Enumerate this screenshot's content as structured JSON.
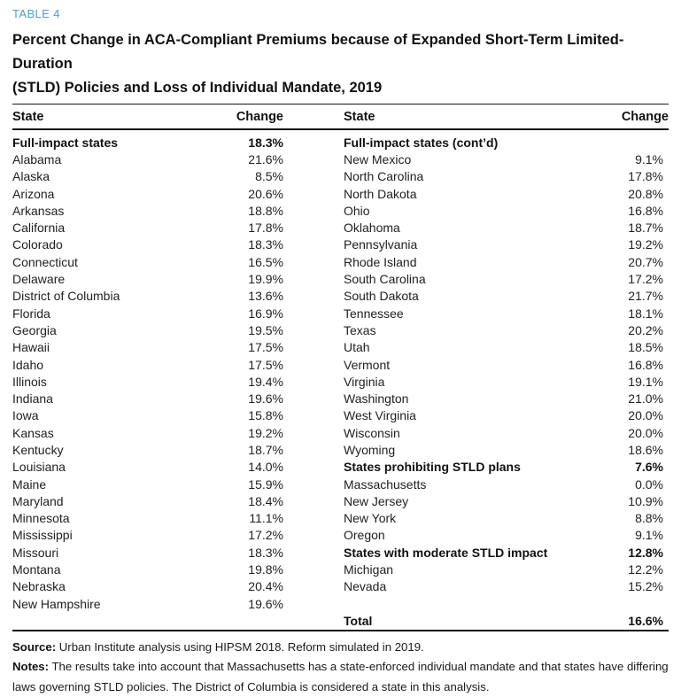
{
  "table_label": "TABLE 4",
  "title_line1": "Percent Change in ACA-Compliant Premiums because of Expanded Short-Term Limited-Duration",
  "title_line2": "(STLD) Policies and Loss of Individual Mandate, 2019",
  "columns": {
    "state": "State",
    "change": "Change"
  },
  "left_rows": [
    {
      "state": "Full-impact states",
      "change": "18.3%",
      "bold": true
    },
    {
      "state": "Alabama",
      "change": "21.6%",
      "bold": false
    },
    {
      "state": "Alaska",
      "change": "8.5%",
      "bold": false
    },
    {
      "state": "Arizona",
      "change": "20.6%",
      "bold": false
    },
    {
      "state": "Arkansas",
      "change": "18.8%",
      "bold": false
    },
    {
      "state": "California",
      "change": "17.8%",
      "bold": false
    },
    {
      "state": "Colorado",
      "change": "18.3%",
      "bold": false
    },
    {
      "state": "Connecticut",
      "change": "16.5%",
      "bold": false
    },
    {
      "state": "Delaware",
      "change": "19.9%",
      "bold": false
    },
    {
      "state": "District of Columbia",
      "change": "13.6%",
      "bold": false
    },
    {
      "state": "Florida",
      "change": "16.9%",
      "bold": false
    },
    {
      "state": "Georgia",
      "change": "19.5%",
      "bold": false
    },
    {
      "state": "Hawaii",
      "change": "17.5%",
      "bold": false
    },
    {
      "state": "Idaho",
      "change": "17.5%",
      "bold": false
    },
    {
      "state": "Illinois",
      "change": "19.4%",
      "bold": false
    },
    {
      "state": "Indiana",
      "change": "19.6%",
      "bold": false
    },
    {
      "state": "Iowa",
      "change": "15.8%",
      "bold": false
    },
    {
      "state": "Kansas",
      "change": "19.2%",
      "bold": false
    },
    {
      "state": "Kentucky",
      "change": "18.7%",
      "bold": false
    },
    {
      "state": "Louisiana",
      "change": "14.0%",
      "bold": false
    },
    {
      "state": "Maine",
      "change": "15.9%",
      "bold": false
    },
    {
      "state": "Maryland",
      "change": "18.4%",
      "bold": false
    },
    {
      "state": "Minnesota",
      "change": "11.1%",
      "bold": false
    },
    {
      "state": "Mississippi",
      "change": "17.2%",
      "bold": false
    },
    {
      "state": "Missouri",
      "change": "18.3%",
      "bold": false
    },
    {
      "state": "Montana",
      "change": "19.8%",
      "bold": false
    },
    {
      "state": "Nebraska",
      "change": "20.4%",
      "bold": false
    },
    {
      "state": "New Hampshire",
      "change": "19.6%",
      "bold": false
    }
  ],
  "right_rows": [
    {
      "state": "Full-impact states (cont’d)",
      "change": "",
      "bold": true
    },
    {
      "state": "New Mexico",
      "change": "9.1%",
      "bold": false
    },
    {
      "state": "North Carolina",
      "change": "17.8%",
      "bold": false
    },
    {
      "state": "North Dakota",
      "change": "20.8%",
      "bold": false
    },
    {
      "state": "Ohio",
      "change": "16.8%",
      "bold": false
    },
    {
      "state": "Oklahoma",
      "change": "18.7%",
      "bold": false
    },
    {
      "state": "Pennsylvania",
      "change": "19.2%",
      "bold": false
    },
    {
      "state": "Rhode Island",
      "change": "20.7%",
      "bold": false
    },
    {
      "state": "South Carolina",
      "change": "17.2%",
      "bold": false
    },
    {
      "state": "South Dakota",
      "change": "21.7%",
      "bold": false
    },
    {
      "state": "Tennessee",
      "change": "18.1%",
      "bold": false
    },
    {
      "state": "Texas",
      "change": "20.2%",
      "bold": false
    },
    {
      "state": "Utah",
      "change": "18.5%",
      "bold": false
    },
    {
      "state": "Vermont",
      "change": "16.8%",
      "bold": false
    },
    {
      "state": "Virginia",
      "change": "19.1%",
      "bold": false
    },
    {
      "state": "Washington",
      "change": "21.0%",
      "bold": false
    },
    {
      "state": "West Virginia",
      "change": "20.0%",
      "bold": false
    },
    {
      "state": "Wisconsin",
      "change": "20.0%",
      "bold": false
    },
    {
      "state": "Wyoming",
      "change": "18.6%",
      "bold": false
    },
    {
      "state": "States prohibiting STLD plans",
      "change": "7.6%",
      "bold": true
    },
    {
      "state": "Massachusetts",
      "change": "0.0%",
      "bold": false
    },
    {
      "state": "New Jersey",
      "change": "10.9%",
      "bold": false
    },
    {
      "state": "New York",
      "change": "8.8%",
      "bold": false
    },
    {
      "state": "Oregon",
      "change": "9.1%",
      "bold": false
    },
    {
      "state": "States with moderate STLD impact",
      "change": "12.8%",
      "bold": true
    },
    {
      "state": "Michigan",
      "change": "12.2%",
      "bold": false
    },
    {
      "state": "Nevada",
      "change": "15.2%",
      "bold": false
    },
    {
      "state": "",
      "change": "",
      "bold": false
    },
    {
      "state": "Total",
      "change": "16.6%",
      "bold": true
    }
  ],
  "footer": {
    "source_label": "Source:",
    "source_text": " Urban Institute analysis using HIPSM 2018. Reform simulated in 2019.",
    "notes_label": "Notes:",
    "notes_text": " The results take into account that Massachusetts has a state-enforced individual mandate and that states have differing laws governing STLD policies. The District of Columbia is considered a state in this analysis."
  },
  "colors": {
    "accent_blue": "#4aa1c8",
    "text": "#212121",
    "rule": "#111111"
  }
}
